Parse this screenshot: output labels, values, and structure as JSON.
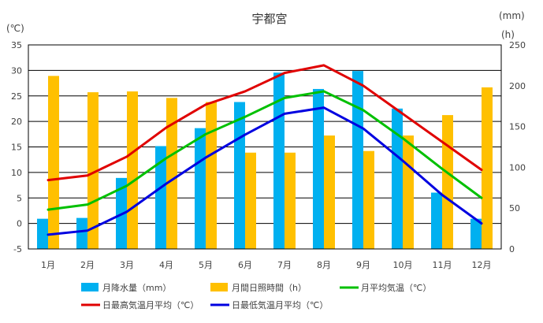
{
  "chart_data": {
    "type": "bar",
    "title": "宇都宮",
    "categories": [
      "1月",
      "2月",
      "3月",
      "4月",
      "5月",
      "6月",
      "7月",
      "8月",
      "9月",
      "10月",
      "11月",
      "12月"
    ],
    "left_axis": {
      "unit": "(℃)",
      "min": -5,
      "max": 35,
      "step": 5,
      "ticks": [
        "-5",
        "0",
        "5",
        "10",
        "15",
        "20",
        "25",
        "30",
        "35"
      ]
    },
    "right_axis": {
      "unit_top": "(mm)",
      "unit": "(h)",
      "min": 0,
      "max": 250,
      "step": 50,
      "ticks": [
        "0",
        "50",
        "100",
        "150",
        "200",
        "250"
      ]
    },
    "grid": true,
    "legend_position": "bottom",
    "series": [
      {
        "name": "月降水量（mm）",
        "kind": "bar",
        "axis": "right",
        "color": "#00b0f0",
        "values": [
          37,
          38,
          87,
          126,
          148,
          180,
          216,
          196,
          218,
          172,
          69,
          37
        ]
      },
      {
        "name": "月間日照時間（h）",
        "kind": "bar",
        "axis": "right",
        "color": "#ffc000",
        "values": [
          212,
          192,
          193,
          185,
          180,
          118,
          118,
          139,
          120,
          139,
          164,
          198
        ]
      },
      {
        "name": "月平均気温（℃）",
        "kind": "line",
        "axis": "left",
        "color": "#00c000",
        "values": [
          2.7,
          3.7,
          7.4,
          12.8,
          17.5,
          20.9,
          24.6,
          25.9,
          22.2,
          16.7,
          10.7,
          5.0
        ]
      },
      {
        "name": "日最高気温月平均（℃）",
        "kind": "line",
        "axis": "left",
        "color": "#e00000",
        "values": [
          8.5,
          9.4,
          13.1,
          18.8,
          23.3,
          25.9,
          29.5,
          31.0,
          27.0,
          21.5,
          16.0,
          10.5
        ]
      },
      {
        "name": "日最低気温月平均（℃）",
        "kind": "line",
        "axis": "left",
        "color": "#0000e0",
        "values": [
          -2.2,
          -1.4,
          2.3,
          7.8,
          12.9,
          17.4,
          21.5,
          22.7,
          18.6,
          12.3,
          5.6,
          0.0
        ]
      }
    ]
  }
}
